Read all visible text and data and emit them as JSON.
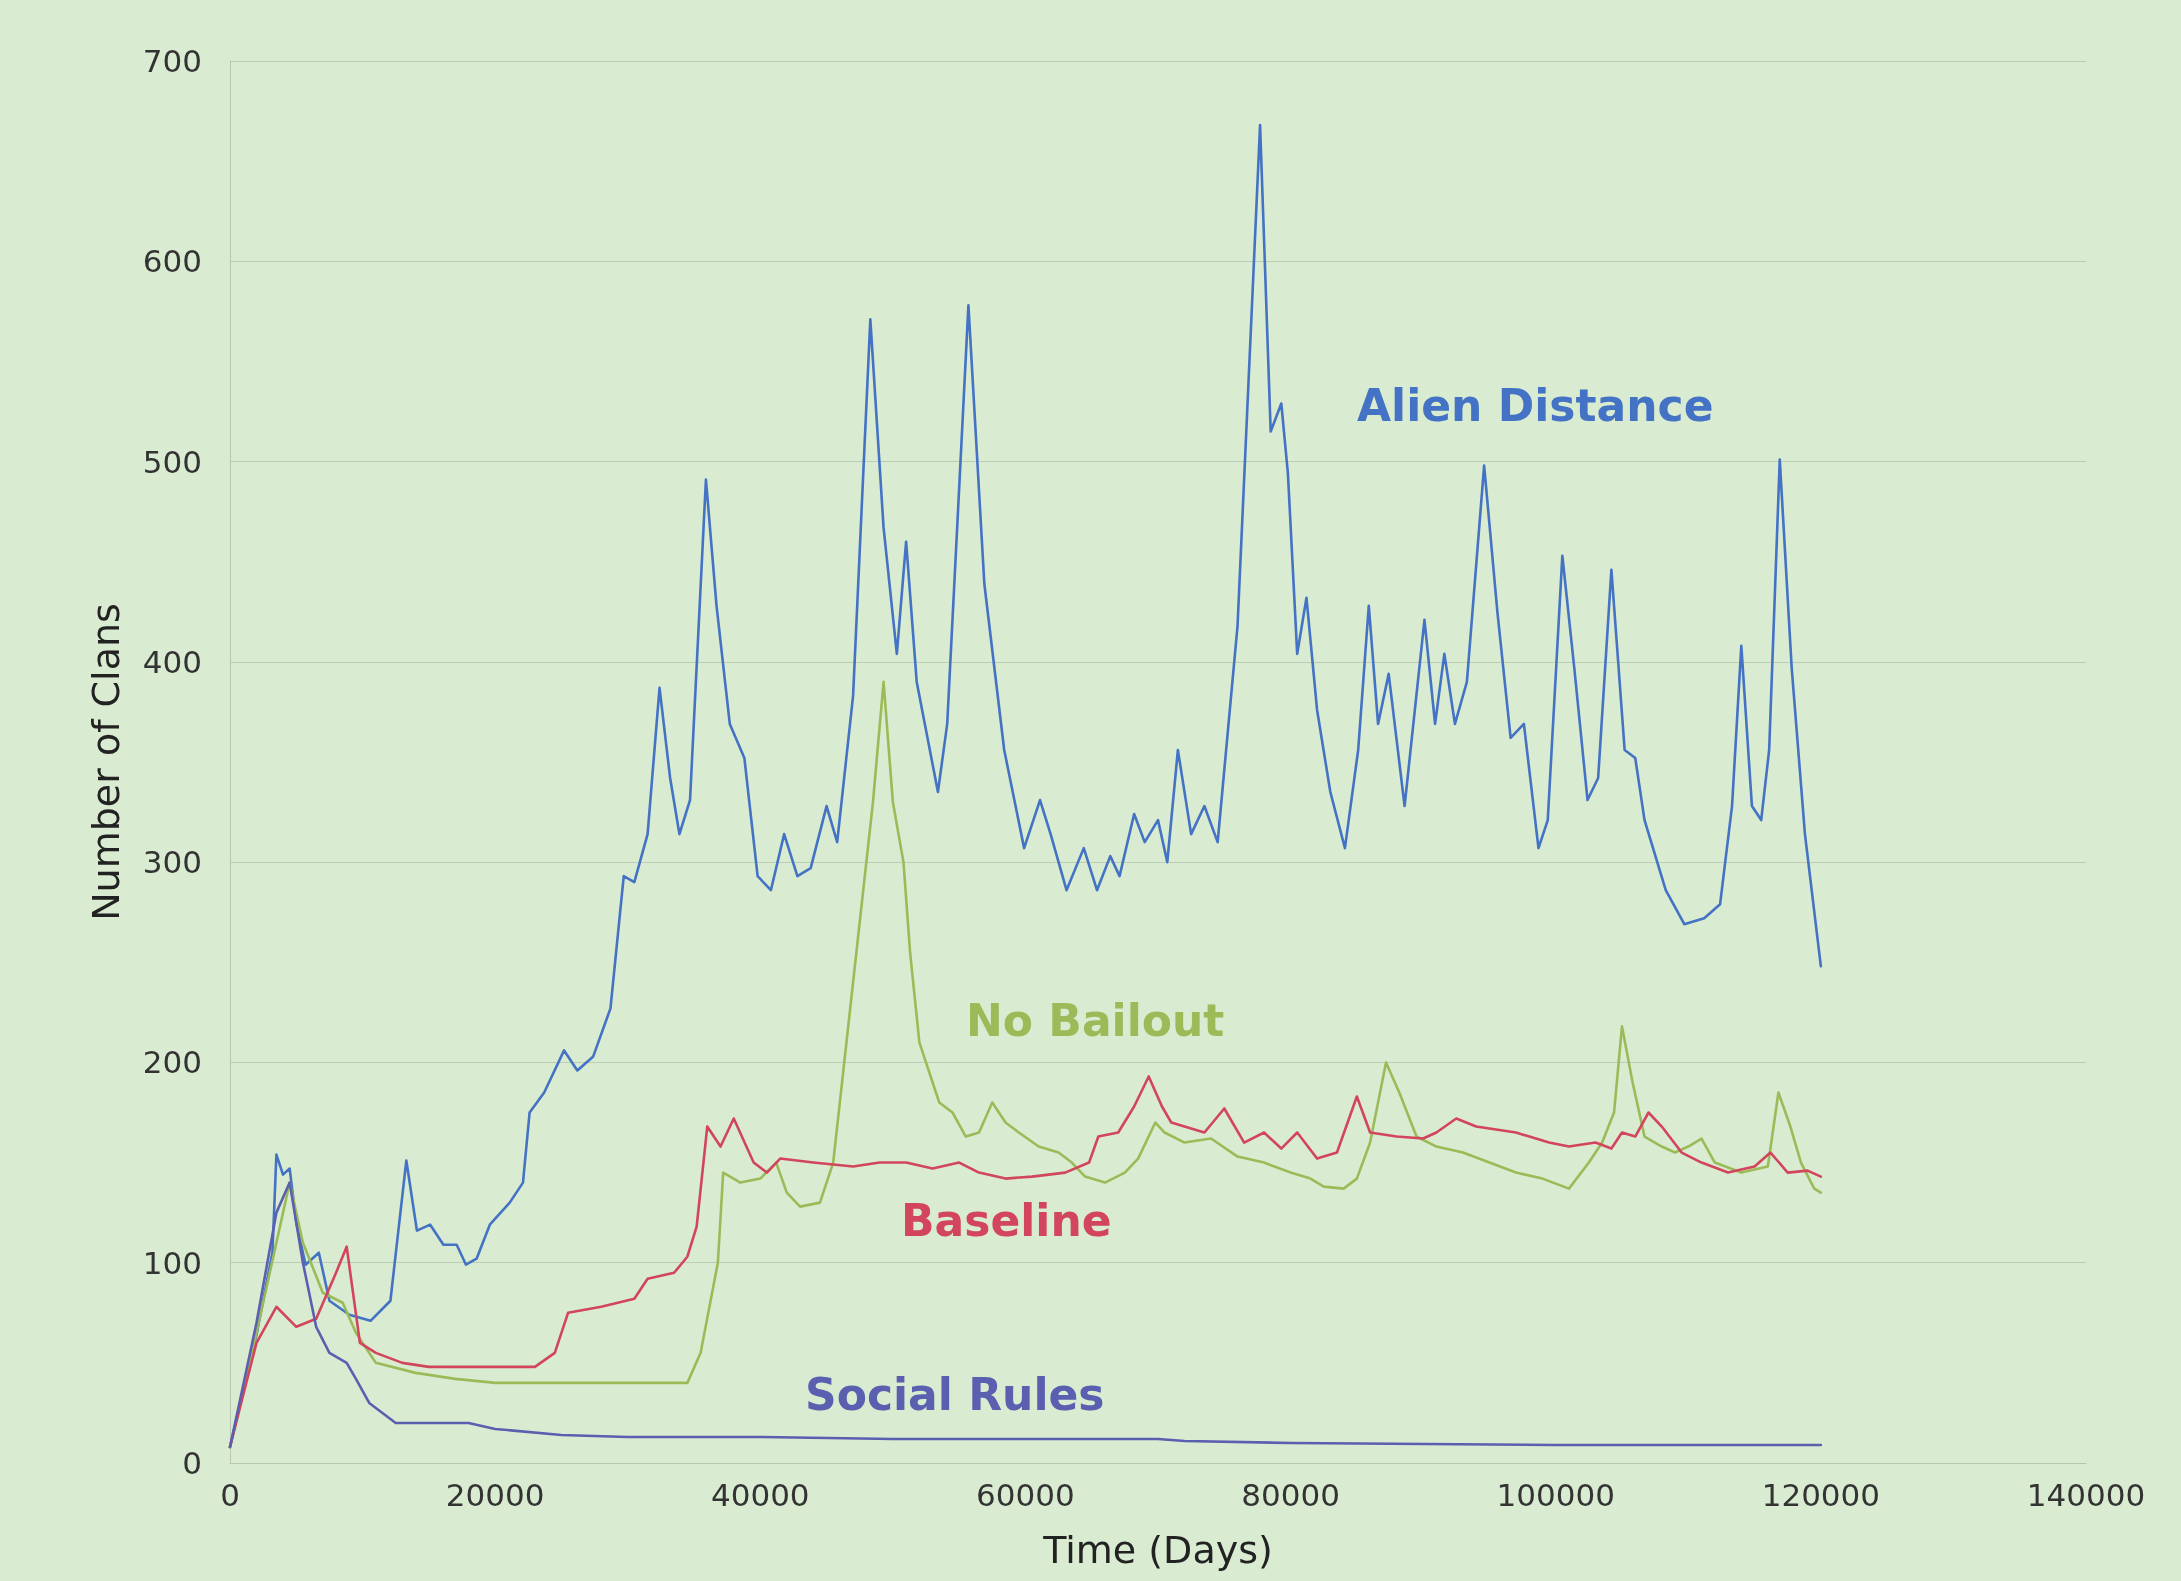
{
  "chart_data": {
    "type": "line",
    "xlabel": "Time (Days)",
    "ylabel": "Number of Clans",
    "xlim": [
      0,
      140000
    ],
    "xticks": [
      0,
      20000,
      40000,
      60000,
      80000,
      100000,
      120000,
      140000
    ],
    "ylim": [
      0,
      700
    ],
    "yticks": [
      0,
      100,
      200,
      300,
      400,
      500,
      600,
      700
    ],
    "grid": "y",
    "legend": false,
    "marker": "none",
    "line_style": "solid",
    "series": [
      {
        "name": "Alien Distance",
        "color": "#4472c4",
        "x": [
          0,
          2000,
          3200,
          3500,
          4000,
          4500,
          5000,
          5700,
          6700,
          7500,
          9000,
          10600,
          12100,
          13300,
          14100,
          15100,
          16100,
          17100,
          17800,
          18600,
          19600,
          21100,
          22100,
          22600,
          23700,
          25200,
          26200,
          27400,
          28700,
          29700,
          30500,
          31500,
          32400,
          33200,
          33900,
          34700,
          35900,
          36700,
          37700,
          38800,
          39800,
          40800,
          41800,
          42800,
          43800,
          45000,
          45800,
          47000,
          48300,
          49300,
          50300,
          51000,
          51800,
          53400,
          54100,
          55700,
          56900,
          58400,
          59900,
          61100,
          61900,
          63100,
          64400,
          65400,
          66400,
          67100,
          68200,
          69000,
          70000,
          70700,
          71500,
          72500,
          73500,
          74500,
          76000,
          77700,
          78500,
          79300,
          79800,
          80500,
          81200,
          82000,
          83000,
          84100,
          85100,
          85900,
          86600,
          87400,
          88600,
          90100,
          90900,
          91600,
          92400,
          93300,
          94600,
          95600,
          96600,
          97600,
          98700,
          99400,
          100500,
          101400,
          102400,
          103200,
          104200,
          105200,
          106000,
          106700,
          108300,
          109700,
          111200,
          112400,
          113300,
          114000,
          114800,
          115500,
          116100,
          116900,
          117800,
          118800,
          120000
        ],
        "values": [
          8,
          64,
          105,
          154,
          144,
          147,
          120,
          99,
          105,
          81,
          74,
          71,
          81,
          151,
          116,
          119,
          109,
          109,
          99,
          102,
          119,
          130,
          140,
          175,
          185,
          206,
          196,
          203,
          227,
          293,
          290,
          314,
          387,
          342,
          314,
          331,
          491,
          428,
          369,
          352,
          293,
          286,
          314,
          293,
          297,
          328,
          310,
          383,
          571,
          467,
          404,
          460,
          390,
          335,
          369,
          578,
          439,
          356,
          307,
          331,
          314,
          286,
          307,
          286,
          303,
          293,
          324,
          310,
          321,
          300,
          356,
          314,
          328,
          310,
          418,
          668,
          515,
          529,
          494,
          404,
          432,
          376,
          335,
          307,
          356,
          428,
          369,
          394,
          328,
          421,
          369,
          404,
          369,
          390,
          498,
          425,
          362,
          369,
          307,
          321,
          453,
          397,
          331,
          342,
          446,
          356,
          352,
          321,
          286,
          269,
          272,
          279,
          328,
          408,
          328,
          321,
          356,
          501,
          397,
          314,
          248
        ]
      },
      {
        "name": "No Bailout",
        "color": "#9bbb59",
        "x": [
          0,
          2000,
          3500,
          4500,
          5500,
          7000,
          8500,
          9500,
          11000,
          14000,
          17000,
          20000,
          25000,
          30000,
          34500,
          35500,
          36800,
          37200,
          38500,
          40000,
          41200,
          42000,
          43000,
          44500,
          45500,
          46500,
          47500,
          48500,
          49300,
          50000,
          50800,
          51300,
          52000,
          53500,
          54500,
          55500,
          56500,
          57500,
          58500,
          59500,
          61000,
          62500,
          63500,
          64500,
          66000,
          67500,
          68500,
          69800,
          70500,
          72000,
          74000,
          76000,
          78000,
          80000,
          81500,
          82500,
          84000,
          85000,
          86000,
          87200,
          88200,
          89500,
          91000,
          93000,
          95000,
          97000,
          99000,
          101000,
          102500,
          103500,
          104400,
          105000,
          105800,
          106700,
          108000,
          109000,
          110000,
          111000,
          112000,
          114000,
          116000,
          116800,
          117700,
          118500,
          119500,
          120000
        ],
        "values": [
          8,
          65,
          110,
          140,
          110,
          85,
          80,
          65,
          50,
          45,
          42,
          40,
          40,
          40,
          40,
          55,
          100,
          145,
          140,
          142,
          150,
          135,
          128,
          130,
          150,
          210,
          270,
          330,
          390,
          330,
          300,
          255,
          210,
          180,
          175,
          163,
          165,
          180,
          170,
          165,
          158,
          155,
          150,
          143,
          140,
          145,
          152,
          170,
          165,
          160,
          162,
          153,
          150,
          145,
          142,
          138,
          137,
          142,
          160,
          200,
          185,
          163,
          158,
          155,
          150,
          145,
          142,
          137,
          150,
          160,
          175,
          218,
          190,
          163,
          158,
          155,
          158,
          162,
          150,
          145,
          148,
          185,
          168,
          150,
          137,
          135
        ]
      },
      {
        "name": "Baseline",
        "color": "#d2455c",
        "x": [
          0,
          2000,
          3500,
          5000,
          6500,
          8000,
          8800,
          9800,
          11000,
          13000,
          15000,
          20000,
          23000,
          24500,
          25500,
          28000,
          30500,
          31500,
          33500,
          34500,
          35200,
          36000,
          37000,
          38000,
          39500,
          40500,
          41500,
          44000,
          47000,
          49000,
          51000,
          53000,
          55000,
          56500,
          58500,
          60500,
          63000,
          64800,
          65500,
          67000,
          68200,
          69300,
          70300,
          71000,
          73500,
          75000,
          76500,
          78000,
          79300,
          80500,
          82000,
          83500,
          85000,
          86000,
          88000,
          90000,
          91000,
          92500,
          94000,
          97000,
          99500,
          101000,
          103000,
          104200,
          105000,
          106000,
          107000,
          108000,
          109500,
          111000,
          113000,
          115000,
          116200,
          117500,
          119000,
          120000
        ],
        "values": [
          8,
          60,
          78,
          68,
          72,
          95,
          108,
          60,
          55,
          50,
          48,
          48,
          48,
          55,
          75,
          78,
          82,
          92,
          95,
          103,
          118,
          168,
          158,
          172,
          150,
          145,
          152,
          150,
          148,
          150,
          150,
          147,
          150,
          145,
          142,
          143,
          145,
          150,
          163,
          165,
          178,
          193,
          178,
          170,
          165,
          177,
          160,
          165,
          157,
          165,
          152,
          155,
          183,
          165,
          163,
          162,
          165,
          172,
          168,
          165,
          160,
          158,
          160,
          157,
          165,
          163,
          175,
          168,
          155,
          150,
          145,
          148,
          155,
          145,
          146,
          143
        ]
      },
      {
        "name": "Social Rules",
        "color": "#5b5fb0",
        "x": [
          0,
          2000,
          3500,
          4500,
          5500,
          6500,
          7500,
          8800,
          9500,
          10500,
          11500,
          12500,
          15000,
          18000,
          20000,
          25000,
          30000,
          40000,
          50000,
          60000,
          70000,
          72000,
          80000,
          100000,
          120000
        ],
        "values": [
          8,
          70,
          125,
          140,
          100,
          68,
          55,
          50,
          42,
          30,
          25,
          20,
          20,
          20,
          17,
          14,
          13,
          13,
          12,
          12,
          12,
          11,
          10,
          9,
          9
        ]
      }
    ]
  }
}
